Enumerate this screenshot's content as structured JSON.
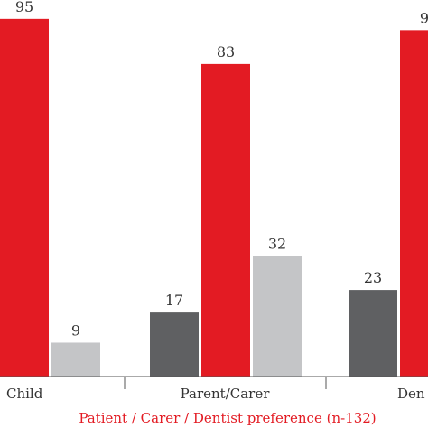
{
  "chart_data": {
    "type": "bar",
    "categories": [
      "Child",
      "Parent/Carer",
      "Dentist"
    ],
    "category_labels_visible": [
      "Child",
      "Parent/Carer",
      "Den"
    ],
    "xlabel": "Patient / Carer / Dentist preference (n-132)",
    "ylabel": "",
    "ylim": [
      0,
      100
    ],
    "series": [
      {
        "color": "#5f6062",
        "values": [
          null,
          17,
          23
        ]
      },
      {
        "color": "#e31b23",
        "values": [
          95,
          83,
          92
        ]
      },
      {
        "color": "#c4c5c7",
        "values": [
          9,
          32,
          null
        ]
      }
    ],
    "value_labels_visible": [
      [
        "",
        "17",
        "23"
      ],
      [
        "95",
        "83",
        "9"
      ],
      [
        "9",
        "32",
        ""
      ]
    ],
    "grid": false,
    "legend": "none"
  }
}
